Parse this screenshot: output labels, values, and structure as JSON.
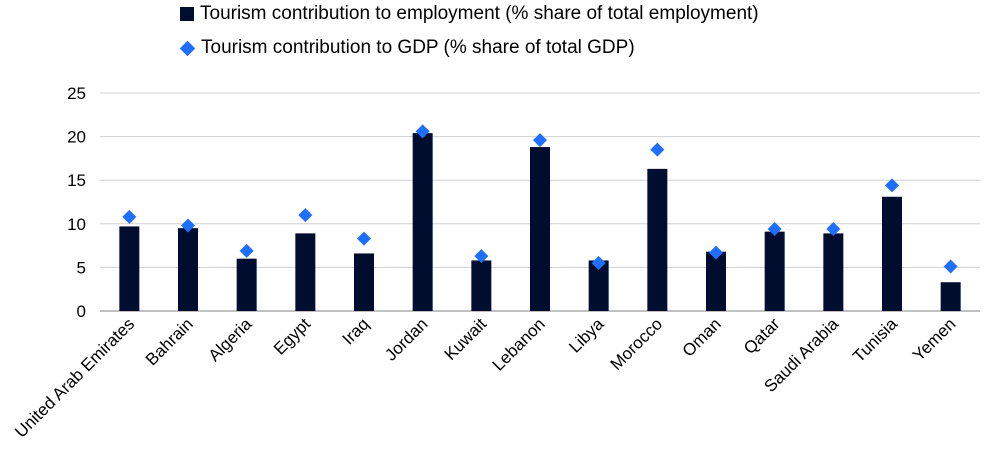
{
  "chart_data": {
    "type": "bar",
    "title": "",
    "xlabel": "",
    "ylabel": "",
    "ylim": [
      0,
      25
    ],
    "yticks": [
      0,
      5,
      10,
      15,
      20,
      25
    ],
    "grid": true,
    "legend_position": "top",
    "categories": [
      "United Arab Emirates",
      "Bahrain",
      "Algeria",
      "Egypt",
      "Iraq",
      "Jordan",
      "Kuwait",
      "Lebanon",
      "Libya",
      "Morocco",
      "Oman",
      "Qatar",
      "Saudi Arabia",
      "Tunisia",
      "Yemen"
    ],
    "series": [
      {
        "name": "Tourism contribution to employment (% share of total employment)",
        "mark": "bar",
        "color": "#000d2e",
        "values": [
          9.7,
          9.5,
          6.0,
          8.9,
          6.6,
          20.4,
          5.8,
          18.8,
          5.8,
          16.3,
          6.8,
          9.1,
          8.9,
          13.1,
          3.3
        ]
      },
      {
        "name": "Tourism contribution to GDP (% share of total GDP)",
        "mark": "diamond",
        "color": "#1f6fff",
        "values": [
          10.8,
          9.8,
          6.9,
          11.0,
          8.3,
          20.6,
          6.3,
          19.6,
          5.5,
          18.5,
          6.7,
          9.4,
          9.4,
          14.4,
          5.1
        ]
      }
    ]
  }
}
